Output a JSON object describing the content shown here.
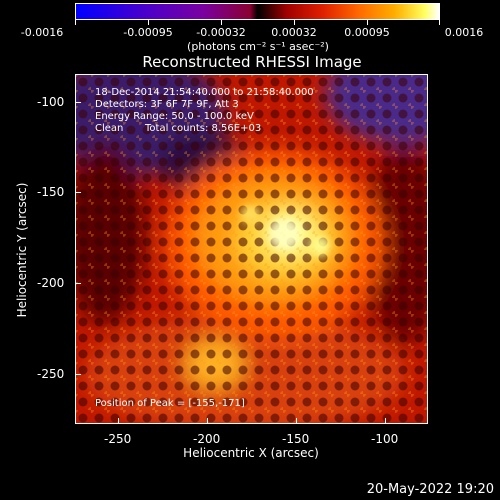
{
  "colorbar": {
    "ticks": [
      "-0.0016",
      "-0.00095",
      "-0.00032",
      "0.00032",
      "0.00095",
      "0.0016"
    ],
    "units": "(photons cm⁻² s⁻¹ asec⁻²)"
  },
  "title": "Reconstructed RHESSI Image",
  "info": {
    "time_range": "18-Dec-2014 21:54:40.000 to 21:58:40.000",
    "detectors": "Detectors: 3F 6F 7F 9F, Att 3",
    "energy": "Energy Range: 50.0 - 100.0 keV",
    "clean": "Clean",
    "counts": "Total counts: 8.56E+03"
  },
  "peak_text": "Position of Peak = [-155,-171]",
  "axes": {
    "xlabel": "Heliocentric X (arcsec)",
    "ylabel": "Heliocentric Y (arcsec)",
    "xticks": [
      "-250",
      "-200",
      "-150",
      "-100"
    ],
    "yticks": [
      "-100",
      "-150",
      "-200",
      "-250"
    ]
  },
  "timestamp": "20-May-2022 19:20",
  "colors": {
    "background": "#000000",
    "foreground": "#ffffff"
  }
}
